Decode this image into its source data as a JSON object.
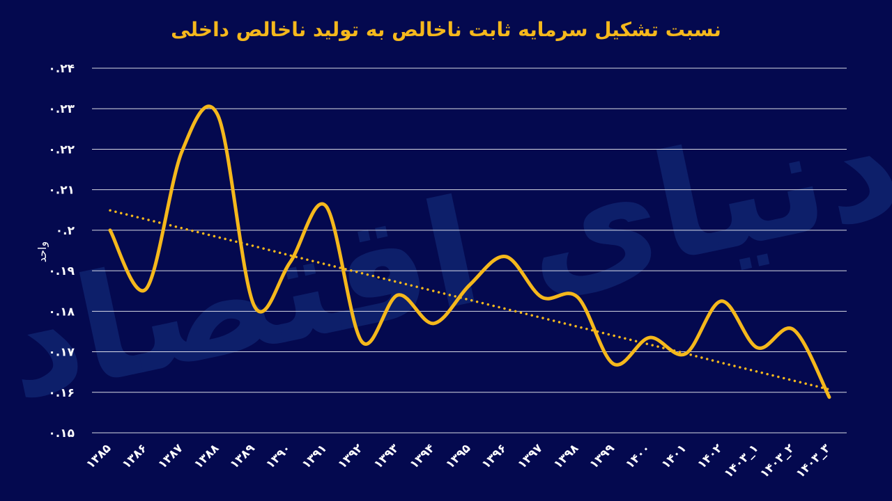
{
  "chart_data": {
    "type": "line",
    "title": "نسبت تشکیل سرمایه ثابت ناخالص به تولید ناخالص داخلی",
    "xlabel": "",
    "ylabel": "واحد",
    "ylim": [
      0.15,
      0.24
    ],
    "yticks": [
      0.15,
      0.16,
      0.17,
      0.18,
      0.19,
      0.2,
      0.21,
      0.22,
      0.23,
      0.24
    ],
    "ytick_labels": [
      "۰.۱۵",
      "۰.۱۶",
      "۰.۱۷",
      "۰.۱۸",
      "۰.۱۹",
      "۰.۲",
      "۰.۲۱",
      "۰.۲۲",
      "۰.۲۳",
      "۰.۲۴"
    ],
    "categories": [
      "۱۳۸۵",
      "۱۳۸۶",
      "۱۳۸۷",
      "۱۳۸۸",
      "۱۳۸۹",
      "۱۳۹۰",
      "۱۳۹۱",
      "۱۳۹۲",
      "۱۳۹۳",
      "۱۳۹۴",
      "۱۳۹۵",
      "۱۳۹۶",
      "۱۳۹۷",
      "۱۳۹۸",
      "۱۳۹۹",
      "۱۴۰۰",
      "۱۴۰۱",
      "۱۴۰۲",
      "۱۴۰۳_۱",
      "۱۴۰۳_۲",
      "۱۴۰۳_۳"
    ],
    "grid": true,
    "watermark": "دنیای اقتصاد",
    "series": [
      {
        "name": "نسبت تشکیل سرمایه ثابت ناخالص به تولید ناخالص داخلی",
        "style": "smooth",
        "color": "#f5b81c",
        "values": [
          0.2,
          0.1855,
          0.2195,
          0.2283,
          0.1815,
          0.192,
          0.206,
          0.1725,
          0.184,
          0.177,
          0.1865,
          0.1935,
          0.1835,
          0.1835,
          0.167,
          0.1735,
          0.1695,
          0.1825,
          0.171,
          0.1755,
          0.1588
        ]
      },
      {
        "name": "Linear trend",
        "style": "dotted",
        "color": "#f5b81c",
        "values": [
          0.2049,
          0.2027,
          0.2005,
          0.1983,
          0.1961,
          0.1938,
          0.1916,
          0.1894,
          0.1872,
          0.185,
          0.1828,
          0.1806,
          0.1784,
          0.1762,
          0.174,
          0.1718,
          0.1696,
          0.1673,
          0.1651,
          0.1629,
          0.1607
        ]
      }
    ]
  }
}
